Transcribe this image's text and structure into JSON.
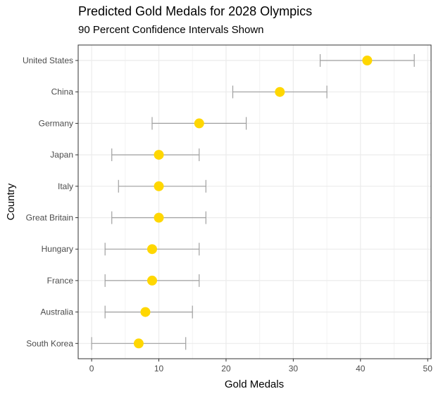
{
  "chart_data": {
    "type": "scatter",
    "title": "Predicted Gold Medals for 2028 Olympics",
    "subtitle": "90 Percent Confidence Intervals Shown",
    "xlabel": "Gold Medals",
    "ylabel": "Country",
    "xlim": [
      -2,
      50.5
    ],
    "x_ticks": [
      0,
      10,
      20,
      30,
      40,
      50
    ],
    "grid": true,
    "point_color": "#FFD700",
    "errorbar_color": "#A0A0A0",
    "points": [
      {
        "country": "United States",
        "value": 41,
        "low": 34,
        "high": 48
      },
      {
        "country": "China",
        "value": 28,
        "low": 21,
        "high": 35
      },
      {
        "country": "Germany",
        "value": 16,
        "low": 9,
        "high": 23
      },
      {
        "country": "Japan",
        "value": 10,
        "low": 3,
        "high": 16
      },
      {
        "country": "Italy",
        "value": 10,
        "low": 4,
        "high": 17
      },
      {
        "country": "Great Britain",
        "value": 10,
        "low": 3,
        "high": 17
      },
      {
        "country": "Hungary",
        "value": 9,
        "low": 2,
        "high": 16
      },
      {
        "country": "France",
        "value": 9,
        "low": 2,
        "high": 16
      },
      {
        "country": "Australia",
        "value": 8,
        "low": 2,
        "high": 15
      },
      {
        "country": "South Korea",
        "value": 7,
        "low": 0,
        "high": 14
      }
    ]
  }
}
